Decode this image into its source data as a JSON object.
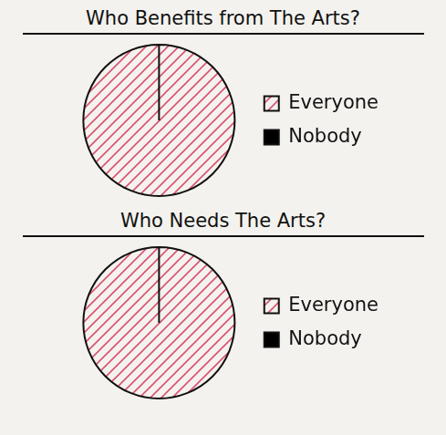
{
  "chart_data": [
    {
      "type": "pie",
      "title": "Who Benefits from The Arts?",
      "categories": [
        "Everyone",
        "Nobody"
      ],
      "values": [
        100,
        0
      ],
      "colors": [
        "#d9536f",
        "#000000"
      ],
      "legend": "right"
    },
    {
      "type": "pie",
      "title": "Who Needs The Arts?",
      "categories": [
        "Everyone",
        "Nobody"
      ],
      "values": [
        100,
        0
      ],
      "colors": [
        "#d9536f",
        "#000000"
      ],
      "legend": "right"
    }
  ]
}
